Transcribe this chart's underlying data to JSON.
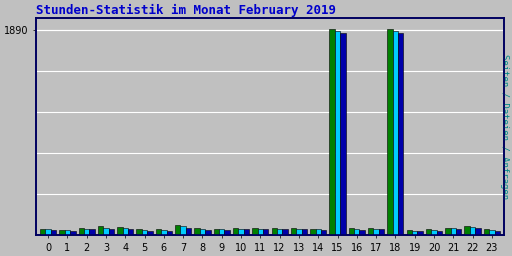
{
  "title": "Stunden-Statistik im Monat February 2019",
  "ylabel": "Seiten / Dateien / Anfragen",
  "xlabel_values": [
    0,
    1,
    2,
    3,
    4,
    5,
    6,
    7,
    8,
    9,
    10,
    11,
    12,
    13,
    14,
    15,
    16,
    17,
    18,
    19,
    20,
    21,
    22,
    23
  ],
  "seiten": [
    55,
    48,
    62,
    78,
    72,
    50,
    52,
    88,
    60,
    58,
    62,
    64,
    62,
    62,
    58,
    1895,
    60,
    62,
    1895,
    44,
    52,
    68,
    82,
    52
  ],
  "dateien": [
    50,
    44,
    56,
    68,
    62,
    44,
    46,
    78,
    55,
    54,
    56,
    58,
    56,
    56,
    52,
    1878,
    54,
    56,
    1878,
    40,
    46,
    62,
    74,
    46
  ],
  "anfragen": [
    44,
    38,
    50,
    58,
    54,
    38,
    40,
    68,
    48,
    48,
    50,
    50,
    50,
    50,
    46,
    1862,
    48,
    50,
    1862,
    34,
    40,
    54,
    66,
    40
  ],
  "color_seiten": "#008000",
  "color_dateien": "#00CCFF",
  "color_anfragen": "#0000AA",
  "bg_color": "#C0C0C0",
  "plot_bg": "#C0C0C0",
  "grid_color": "#FFFFFF",
  "title_color": "#0000CC",
  "ylabel_color": "#008888",
  "ytick_label": "1890",
  "ytick_val": 1890,
  "ylim": [
    0,
    2000
  ],
  "bar_width": 0.28,
  "title_fontsize": 9,
  "tick_fontsize": 7,
  "fig_width": 5.12,
  "fig_height": 2.56,
  "dpi": 100
}
